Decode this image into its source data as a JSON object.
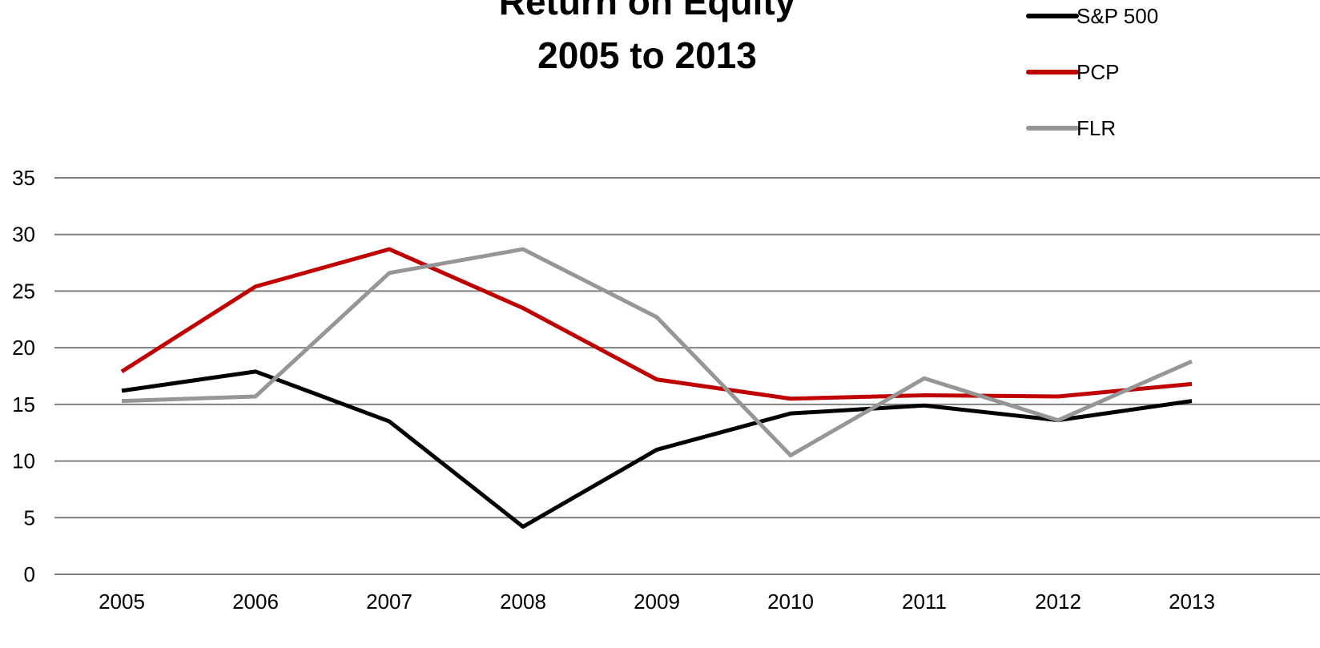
{
  "chart_data": {
    "type": "line",
    "title": "Return on Equity",
    "subtitle": "2005 to 2013",
    "categories": [
      "2005",
      "2006",
      "2007",
      "2008",
      "2009",
      "2010",
      "2011",
      "2012",
      "2013"
    ],
    "y_ticks": [
      "0",
      "5",
      "10",
      "15",
      "20",
      "25",
      "30",
      "35"
    ],
    "ylim": [
      0,
      35
    ],
    "xlabel": "",
    "ylabel": "",
    "grid": "horizontal",
    "legend_position": "top-right",
    "series": [
      {
        "name": "S&P 500",
        "color": "#000000",
        "values": [
          16.2,
          17.9,
          13.5,
          4.2,
          11.0,
          14.2,
          14.9,
          13.6,
          15.3
        ]
      },
      {
        "name": "PCP",
        "color": "#c00000",
        "values": [
          17.9,
          25.4,
          28.7,
          23.5,
          17.2,
          15.5,
          15.8,
          15.7,
          16.8
        ]
      },
      {
        "name": "FLR",
        "color": "#969696",
        "values": [
          15.3,
          15.7,
          26.6,
          28.7,
          22.7,
          10.5,
          17.3,
          13.6,
          18.8
        ]
      }
    ]
  }
}
